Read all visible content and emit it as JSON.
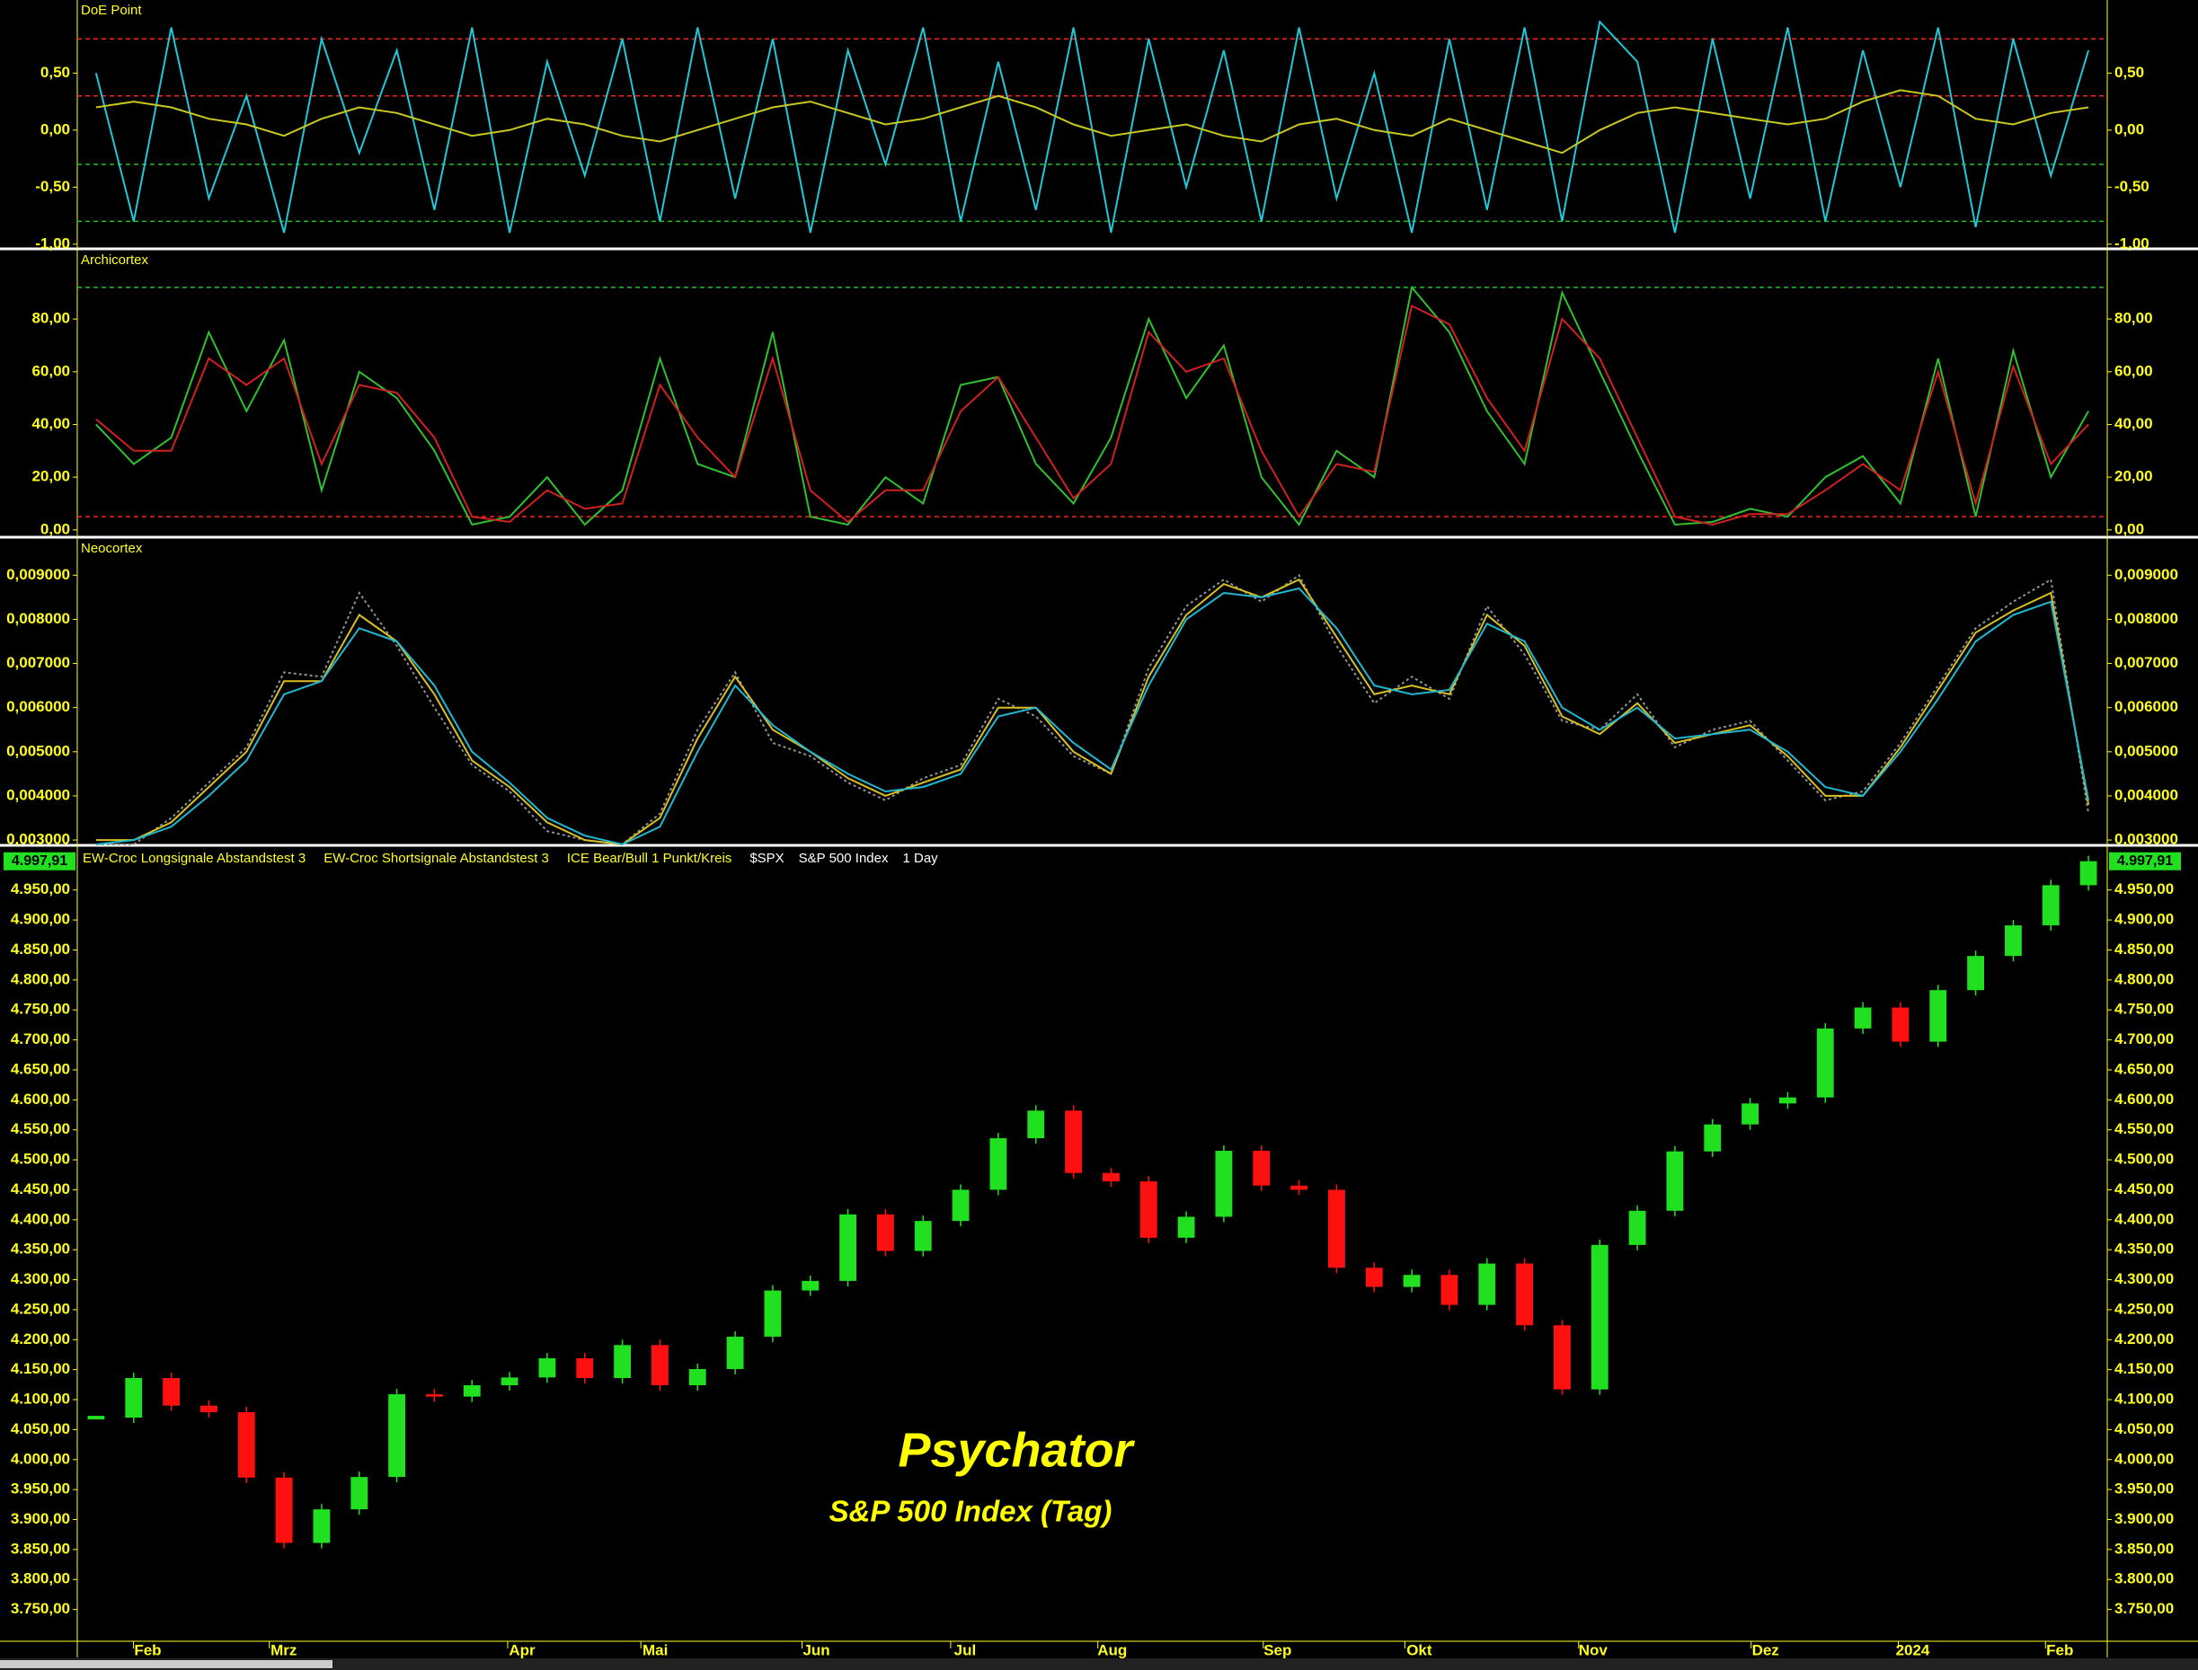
{
  "chart_data": [
    {
      "type": "line",
      "title": "DoE Point",
      "ylim": [
        -1.025,
        1.125
      ],
      "yticks": [
        {
          "value": 0.5,
          "label": "0,50"
        },
        {
          "value": 0,
          "label": "0,00"
        },
        {
          "value": -0.5,
          "label": "-0,50"
        },
        {
          "value": -1,
          "label": "-1,00"
        }
      ],
      "hlines": [
        {
          "value": 0.8,
          "color": "#ff2020"
        },
        {
          "value": 0.3,
          "color": "#ff2020"
        },
        {
          "value": -0.3,
          "color": "#20c020"
        },
        {
          "value": -0.8,
          "color": "#20c020"
        }
      ],
      "series": [
        {
          "color": "#20c8d8",
          "values": [
            0.5,
            -0.8,
            0.9,
            -0.6,
            0.3,
            -0.9,
            0.8,
            -0.2,
            0.7,
            -0.7,
            0.9,
            -0.9,
            0.6,
            -0.4,
            0.8,
            -0.8,
            0.9,
            -0.6,
            0.8,
            -0.9,
            0.7,
            -0.3,
            0.9,
            -0.8,
            0.6,
            -0.7,
            0.9,
            -0.9,
            0.8,
            -0.5,
            0.7,
            -0.8,
            0.9,
            -0.6,
            0.5,
            -0.9,
            0.8,
            -0.7,
            0.9,
            -0.8,
            0.95,
            0.6,
            -0.9,
            0.8,
            -0.6,
            0.9,
            -0.8,
            0.7,
            -0.5,
            0.9,
            -0.85,
            0.8,
            -0.4,
            0.7
          ]
        },
        {
          "color": "#c8c820",
          "values": [
            0.2,
            0.25,
            0.2,
            0.1,
            0.05,
            -0.05,
            0.1,
            0.2,
            0.15,
            0.05,
            -0.05,
            0.0,
            0.1,
            0.05,
            -0.05,
            -0.1,
            0.0,
            0.1,
            0.2,
            0.25,
            0.15,
            0.05,
            0.1,
            0.2,
            0.3,
            0.2,
            0.05,
            -0.05,
            0.0,
            0.05,
            -0.05,
            -0.1,
            0.05,
            0.1,
            0.0,
            -0.05,
            0.1,
            0.0,
            -0.1,
            -0.2,
            0.0,
            0.15,
            0.2,
            0.15,
            0.1,
            0.05,
            0.1,
            0.25,
            0.35,
            0.3,
            0.1,
            0.05,
            0.15,
            0.2
          ]
        }
      ]
    },
    {
      "type": "line",
      "title": "Archicortex",
      "ylim": [
        -2.1,
        105.6
      ],
      "yticks": [
        {
          "value": 80,
          "label": "80,00"
        },
        {
          "value": 60,
          "label": "60,00"
        },
        {
          "value": 40,
          "label": "40,00"
        },
        {
          "value": 20,
          "label": "20,00"
        },
        {
          "value": 0,
          "label": "0,00"
        }
      ],
      "hlines": [
        {
          "value": 92,
          "color": "#20c020"
        },
        {
          "value": 5,
          "color": "#ff2020"
        }
      ],
      "series": [
        {
          "color": "#30c030",
          "values": [
            40,
            25,
            35,
            75,
            45,
            72,
            15,
            60,
            50,
            30,
            2,
            5,
            20,
            2,
            15,
            65,
            25,
            20,
            75,
            5,
            2,
            20,
            10,
            55,
            58,
            25,
            10,
            35,
            80,
            50,
            70,
            20,
            2,
            30,
            20,
            92,
            75,
            45,
            25,
            90,
            60,
            30,
            2,
            3,
            8,
            5,
            20,
            28,
            10,
            65,
            5,
            68,
            20,
            45
          ]
        },
        {
          "color": "#d02020",
          "values": [
            42,
            30,
            30,
            65,
            55,
            65,
            25,
            55,
            52,
            35,
            5,
            3,
            15,
            8,
            10,
            55,
            35,
            20,
            65,
            15,
            3,
            15,
            15,
            45,
            58,
            35,
            12,
            25,
            75,
            60,
            65,
            30,
            5,
            25,
            22,
            85,
            78,
            50,
            30,
            80,
            65,
            35,
            5,
            2,
            6,
            6,
            15,
            25,
            15,
            60,
            10,
            62,
            25,
            40
          ]
        }
      ]
    },
    {
      "type": "line",
      "title": "Neocortex",
      "ylim": [
        0.00292,
        0.0098
      ],
      "yticks": [
        {
          "value": 0.009,
          "label": "0,009000"
        },
        {
          "value": 0.008,
          "label": "0,008000"
        },
        {
          "value": 0.007,
          "label": "0,007000"
        },
        {
          "value": 0.006,
          "label": "0,006000"
        },
        {
          "value": 0.005,
          "label": "0,005000"
        },
        {
          "value": 0.004,
          "label": "0,004000"
        },
        {
          "value": 0.003,
          "label": "0,003000"
        }
      ],
      "series": [
        {
          "color": "#909090",
          "dashed": true,
          "values": [
            0.0029,
            0.0029,
            0.0035,
            0.0043,
            0.0051,
            0.0068,
            0.0067,
            0.0086,
            0.0074,
            0.006,
            0.0047,
            0.0041,
            0.0032,
            0.003,
            0.0029,
            0.0036,
            0.0055,
            0.0068,
            0.0052,
            0.0049,
            0.0043,
            0.0039,
            0.0044,
            0.0047,
            0.0062,
            0.0058,
            0.0049,
            0.0045,
            0.0069,
            0.0083,
            0.0089,
            0.0084,
            0.009,
            0.0074,
            0.0061,
            0.0067,
            0.0062,
            0.0083,
            0.0072,
            0.0057,
            0.0055,
            0.0063,
            0.0051,
            0.0055,
            0.0057,
            0.0048,
            0.0039,
            0.0041,
            0.0052,
            0.0065,
            0.0078,
            0.0084,
            0.0089,
            0.0036
          ]
        },
        {
          "color": "#d8c020",
          "values": [
            0.003,
            0.003,
            0.0034,
            0.0042,
            0.005,
            0.0066,
            0.0066,
            0.0081,
            0.0075,
            0.0063,
            0.0048,
            0.0042,
            0.0034,
            0.003,
            0.0029,
            0.0035,
            0.0053,
            0.0067,
            0.0055,
            0.005,
            0.0044,
            0.004,
            0.0043,
            0.0046,
            0.006,
            0.006,
            0.005,
            0.0045,
            0.0067,
            0.0081,
            0.0088,
            0.0085,
            0.0089,
            0.0076,
            0.0063,
            0.0065,
            0.0063,
            0.0081,
            0.0074,
            0.0058,
            0.0054,
            0.0061,
            0.0052,
            0.0054,
            0.0056,
            0.0049,
            0.004,
            0.004,
            0.0051,
            0.0064,
            0.0077,
            0.0082,
            0.0086,
            0.0038
          ]
        },
        {
          "color": "#20b8d0",
          "values": [
            0.0029,
            0.003,
            0.0033,
            0.004,
            0.0048,
            0.0063,
            0.0066,
            0.0078,
            0.0075,
            0.0065,
            0.005,
            0.0043,
            0.0035,
            0.0031,
            0.0029,
            0.0033,
            0.005,
            0.0065,
            0.0056,
            0.005,
            0.0045,
            0.0041,
            0.0042,
            0.0045,
            0.0058,
            0.006,
            0.0052,
            0.0046,
            0.0065,
            0.008,
            0.0086,
            0.0085,
            0.0087,
            0.0078,
            0.0065,
            0.0063,
            0.0064,
            0.0079,
            0.0075,
            0.006,
            0.0055,
            0.006,
            0.0053,
            0.0054,
            0.0055,
            0.005,
            0.0042,
            0.004,
            0.005,
            0.0062,
            0.0075,
            0.0081,
            0.0084,
            0.0039
          ]
        }
      ]
    },
    {
      "type": "candlestick",
      "title": "Psychator",
      "subtitle": "S&P 500 Index (Tag)",
      "legend": [
        "EW-Croc Longsignale Abstandstest 3",
        "EW-Croc Shortsignale Abstandstest 3",
        "ICE Bear/Bull 1 Punkt/Kreis"
      ],
      "symbol": "$SPX",
      "name": "S&P 500 Index",
      "interval": "1 Day",
      "ylim": [
        3700,
        5020
      ],
      "yticks": [
        {
          "value": 4950,
          "label": "4.950,00"
        },
        {
          "value": 4900,
          "label": "4.900,00"
        },
        {
          "value": 4850,
          "label": "4.850,00"
        },
        {
          "value": 4800,
          "label": "4.800,00"
        },
        {
          "value": 4750,
          "label": "4.750,00"
        },
        {
          "value": 4700,
          "label": "4.700,00"
        },
        {
          "value": 4650,
          "label": "4.650,00"
        },
        {
          "value": 4600,
          "label": "4.600,00"
        },
        {
          "value": 4550,
          "label": "4.550,00"
        },
        {
          "value": 4500,
          "label": "4.500,00"
        },
        {
          "value": 4450,
          "label": "4.450,00"
        },
        {
          "value": 4400,
          "label": "4.400,00"
        },
        {
          "value": 4350,
          "label": "4.350,00"
        },
        {
          "value": 4300,
          "label": "4.300,00"
        },
        {
          "value": 4250,
          "label": "4.250,00"
        },
        {
          "value": 4200,
          "label": "4.200,00"
        },
        {
          "value": 4150,
          "label": "4.150,00"
        },
        {
          "value": 4100,
          "label": "4.100,00"
        },
        {
          "value": 4050,
          "label": "4.050,00"
        },
        {
          "value": 4000,
          "label": "4.000,00"
        },
        {
          "value": 3950,
          "label": "3.950,00"
        },
        {
          "value": 3900,
          "label": "3.900,00"
        },
        {
          "value": 3850,
          "label": "3.850,00"
        },
        {
          "value": 3800,
          "label": "3.800,00"
        },
        {
          "value": 3750,
          "label": "3.750,00"
        }
      ],
      "current_price": {
        "value": 4997.91,
        "label": "4.997,91"
      },
      "up_color": "#20e020",
      "down_color": "#ff1010",
      "month_labels": [
        "Feb",
        "Mrz",
        "Apr",
        "Mai",
        "Jun",
        "Jul",
        "Aug",
        "Sep",
        "Okt",
        "Nov",
        "Dez",
        "2024",
        "Feb"
      ],
      "values": [
        4070,
        4136,
        4090,
        4079,
        3970,
        3861,
        3917,
        3971,
        4109,
        4105,
        4124,
        4137,
        4169,
        4136,
        4191,
        4124,
        4151,
        4205,
        4282,
        4298,
        4409,
        4348,
        4398,
        4450,
        4536,
        4582,
        4478,
        4464,
        4370,
        4405,
        4515,
        4457,
        4450,
        4320,
        4288,
        4308,
        4258,
        4327,
        4224,
        4117,
        4358,
        4415,
        4514,
        4559,
        4594,
        4604,
        4719,
        4754,
        4697,
        4783,
        4840,
        4891,
        4958,
        4998
      ]
    }
  ]
}
